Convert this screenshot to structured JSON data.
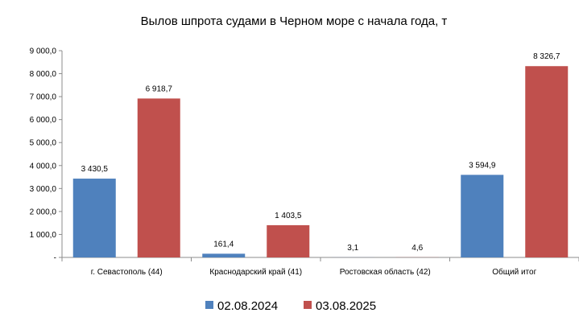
{
  "chart_data": {
    "type": "bar",
    "title": "Вылов шпрота судами в Черном море с начала  года, т",
    "categories": [
      "г. Севастополь (44)",
      "Краснодарский край (41)",
      "Ростовская область (42)",
      "Общий итог"
    ],
    "series": [
      {
        "name": "02.08.2024",
        "color": "#4f81bd",
        "values": [
          3430.5,
          161.4,
          3.1,
          3594.9
        ],
        "labels": [
          "3 430,5",
          "161,4",
          "3,1",
          "3 594,9"
        ]
      },
      {
        "name": "03.08.2025",
        "color": "#c0504d",
        "values": [
          6918.7,
          1403.5,
          4.6,
          8326.7
        ],
        "labels": [
          "6 918,7",
          "1 403,5",
          "4,6",
          "8 326,7"
        ]
      }
    ],
    "ylim": [
      0,
      9000
    ],
    "yticks": [
      0,
      1000,
      2000,
      3000,
      4000,
      5000,
      6000,
      7000,
      8000,
      9000
    ],
    "ytick_labels": [
      "-",
      "1 000,0",
      "2 000,0",
      "3 000,0",
      "4 000,0",
      "5 000,0",
      "6 000,0",
      "7 000,0",
      "8 000,0",
      "9 000,0"
    ],
    "grid": false,
    "legend_position": "bottom"
  }
}
